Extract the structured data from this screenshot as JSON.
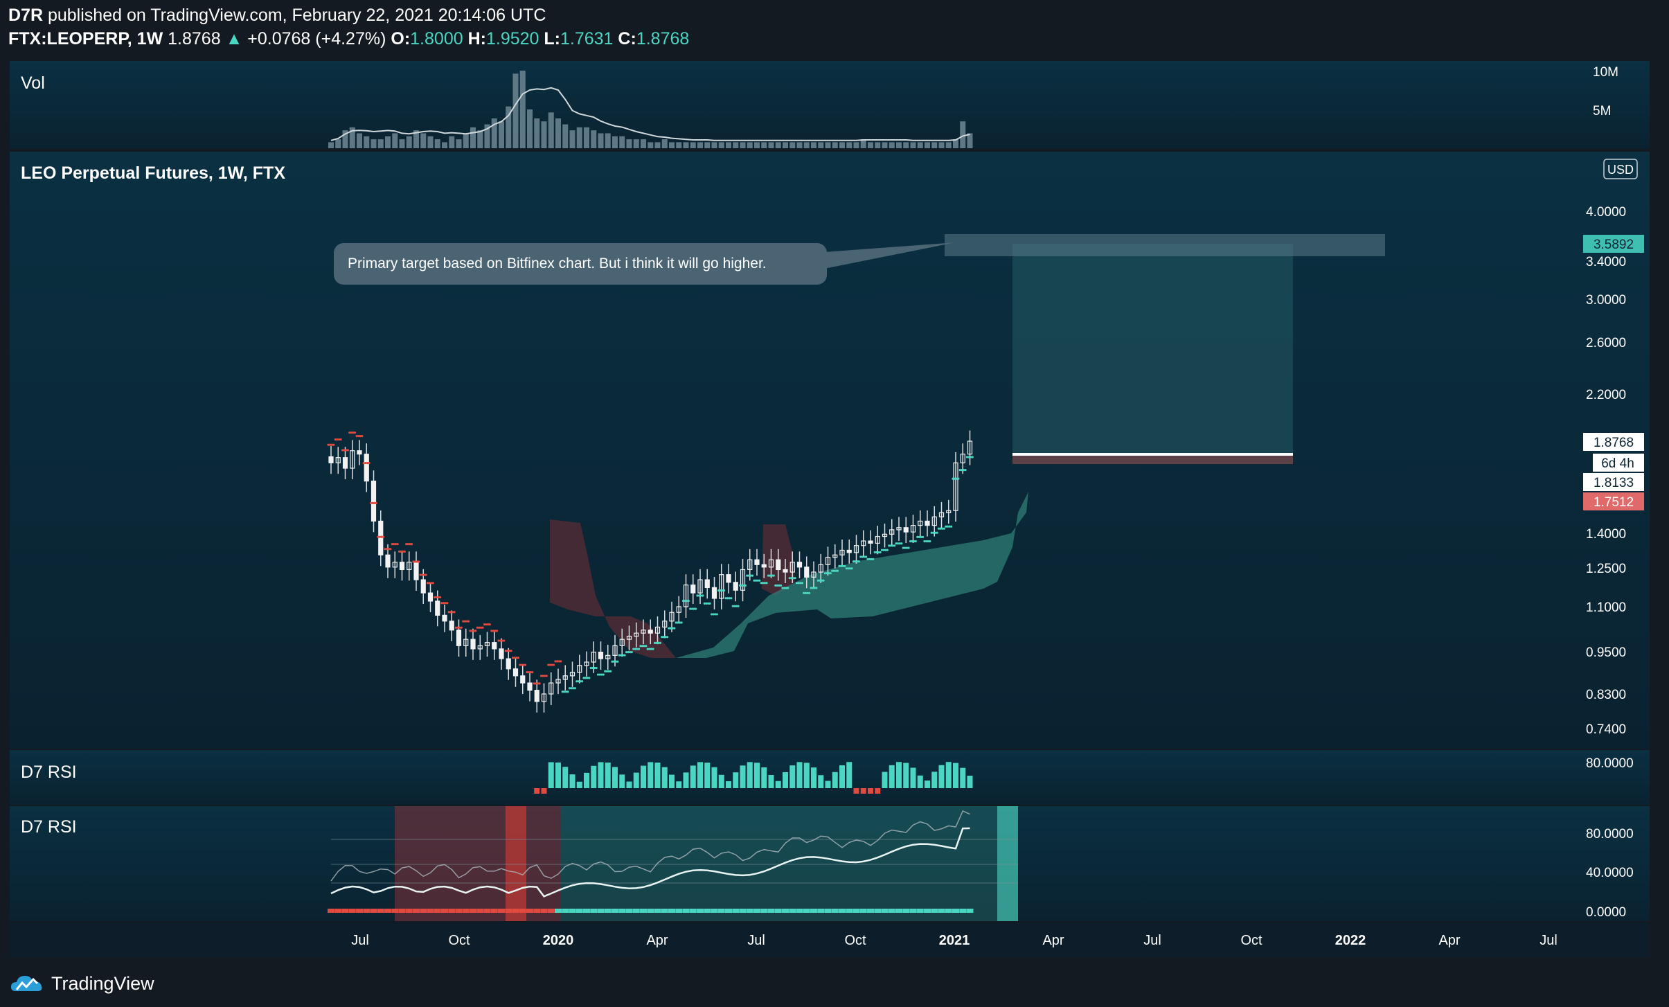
{
  "header": {
    "publisher": "D7R",
    "published_text": "published on TradingView.com, February 22, 2021 20:14:06 UTC",
    "symbol": "FTX:LEOPERP, 1W",
    "last": "1.8768",
    "change": "+0.0768 (+4.27%)",
    "o_label": "O:",
    "o": "1.8000",
    "h_label": "H:",
    "h": "1.9520",
    "l_label": "L:",
    "l": "1.7631",
    "c_label": "C:",
    "c": "1.8768"
  },
  "colors": {
    "background": "#0b2535",
    "up": "#4bd6c1",
    "down": "#e04a3f",
    "candle": "#f2f2f2"
  },
  "vol_panel": {
    "title": "Vol",
    "ticks": [
      "10M",
      "5M"
    ]
  },
  "main_panel": {
    "title": "LEO Perpetual Futures, 1W, FTX",
    "currency": "USD",
    "annotation": "Primary target based on Bitfinex chart. But i think it will go higher.",
    "price_tags": {
      "target": "3.5892",
      "last": "1.8768",
      "countdown": "6d 4h",
      "entry": "1.8133",
      "stop": "1.7512"
    }
  },
  "rsi_panel_1": {
    "title": "D7 RSI",
    "ticks": [
      "80.0000"
    ]
  },
  "rsi_panel_2": {
    "title": "D7 RSI",
    "ticks": [
      "80.0000",
      "40.0000",
      "0.0000"
    ]
  },
  "footer": {
    "brand": "TradingView"
  },
  "chart_data": {
    "type": "candlestick",
    "timeframe": "1W",
    "price_axis": {
      "scale": "log",
      "ticks": [
        "4.0000",
        "3.4000",
        "3.0000",
        "2.6000",
        "2.2000",
        "1.4000",
        "1.2500",
        "1.1000",
        "0.9500",
        "0.8300",
        "0.7400"
      ]
    },
    "time_axis": {
      "ticks": [
        "Jul",
        "Oct",
        "2020",
        "Apr",
        "Jul",
        "Oct",
        "2021",
        "Apr",
        "Jul",
        "Oct",
        "2022",
        "Apr",
        "Jul"
      ],
      "bold": [
        "2020",
        "2021",
        "2022"
      ]
    },
    "closes": [
      1.75,
      1.78,
      1.72,
      1.82,
      1.8,
      1.65,
      1.45,
      1.3,
      1.25,
      1.27,
      1.24,
      1.27,
      1.2,
      1.15,
      1.12,
      1.07,
      1.05,
      1.02,
      0.97,
      0.99,
      0.96,
      0.97,
      0.98,
      0.96,
      0.93,
      0.9,
      0.88,
      0.86,
      0.84,
      0.81,
      0.83,
      0.86,
      0.87,
      0.88,
      0.89,
      0.91,
      0.92,
      0.95,
      0.93,
      0.94,
      0.97,
      0.99,
      1.0,
      1.01,
      1.02,
      1.01,
      1.03,
      1.05,
      1.08,
      1.1,
      1.18,
      1.15,
      1.2,
      1.17,
      1.13,
      1.22,
      1.19,
      1.16,
      1.24,
      1.28,
      1.26,
      1.25,
      1.28,
      1.24,
      1.23,
      1.27,
      1.25,
      1.21,
      1.23,
      1.26,
      1.29,
      1.3,
      1.32,
      1.31,
      1.34,
      1.36,
      1.35,
      1.38,
      1.39,
      1.41,
      1.42,
      1.4,
      1.43,
      1.45,
      1.43,
      1.47,
      1.49,
      1.5,
      1.75,
      1.8,
      1.8768
    ],
    "target_zone": [
      1.8768,
      3.5892
    ],
    "stop_zone": [
      1.7512,
      1.8133
    ]
  }
}
